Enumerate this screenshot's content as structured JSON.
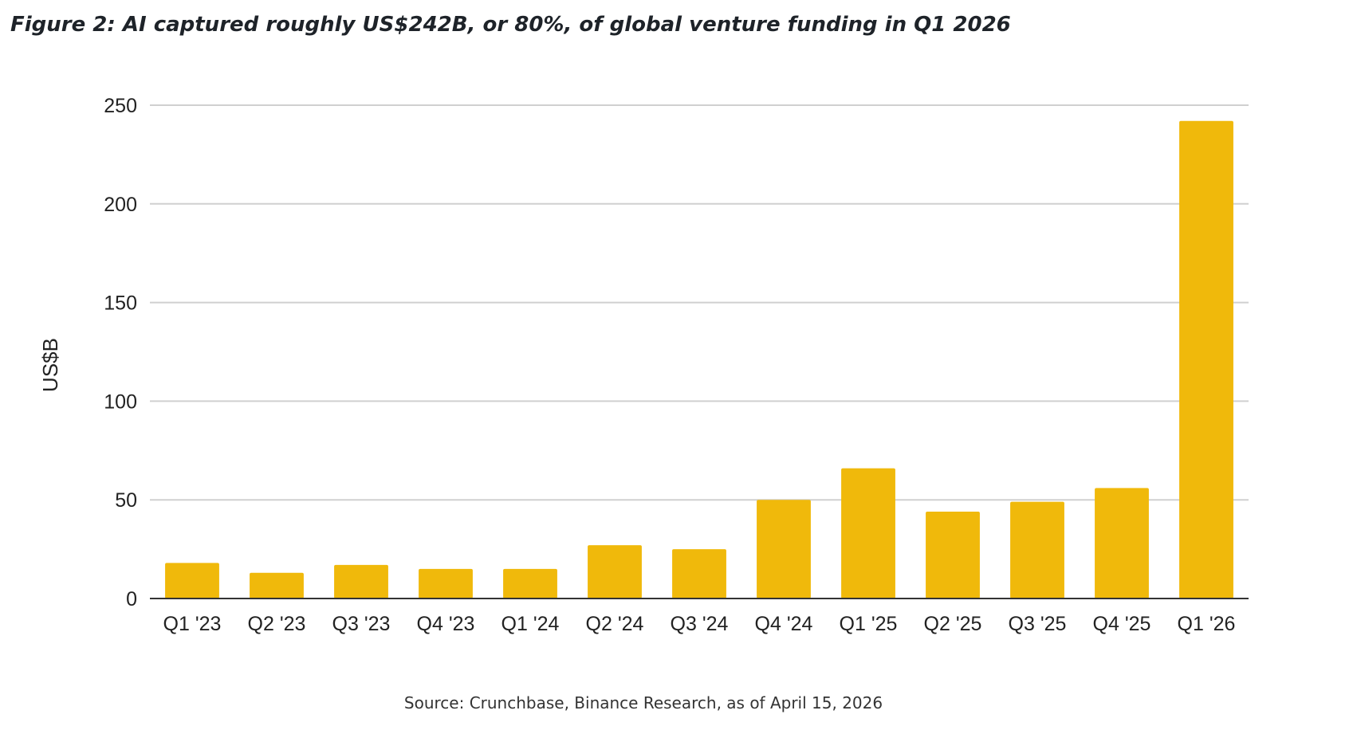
{
  "title": "Figure 2: AI captured roughly US$242B, or 80%, of global venture funding in Q1 2026",
  "source": "Source: Crunchbase, Binance Research, as of April 15, 2026",
  "chart_data": {
    "type": "bar",
    "title": "",
    "xlabel": "",
    "ylabel": "US$B",
    "ylim": [
      0,
      250
    ],
    "yticks": [
      0,
      50,
      100,
      150,
      200,
      250
    ],
    "grid": true,
    "bar_color": "#F0B90B",
    "categories": [
      "Q1 '23",
      "Q2 '23",
      "Q3 '23",
      "Q4 '23",
      "Q1 '24",
      "Q2 '24",
      "Q3 '24",
      "Q4 '24",
      "Q1 '25",
      "Q2 '25",
      "Q3 '25",
      "Q4 '25",
      "Q1 '26"
    ],
    "values": [
      18,
      13,
      17,
      15,
      15,
      27,
      25,
      50,
      66,
      44,
      49,
      56,
      242
    ]
  }
}
